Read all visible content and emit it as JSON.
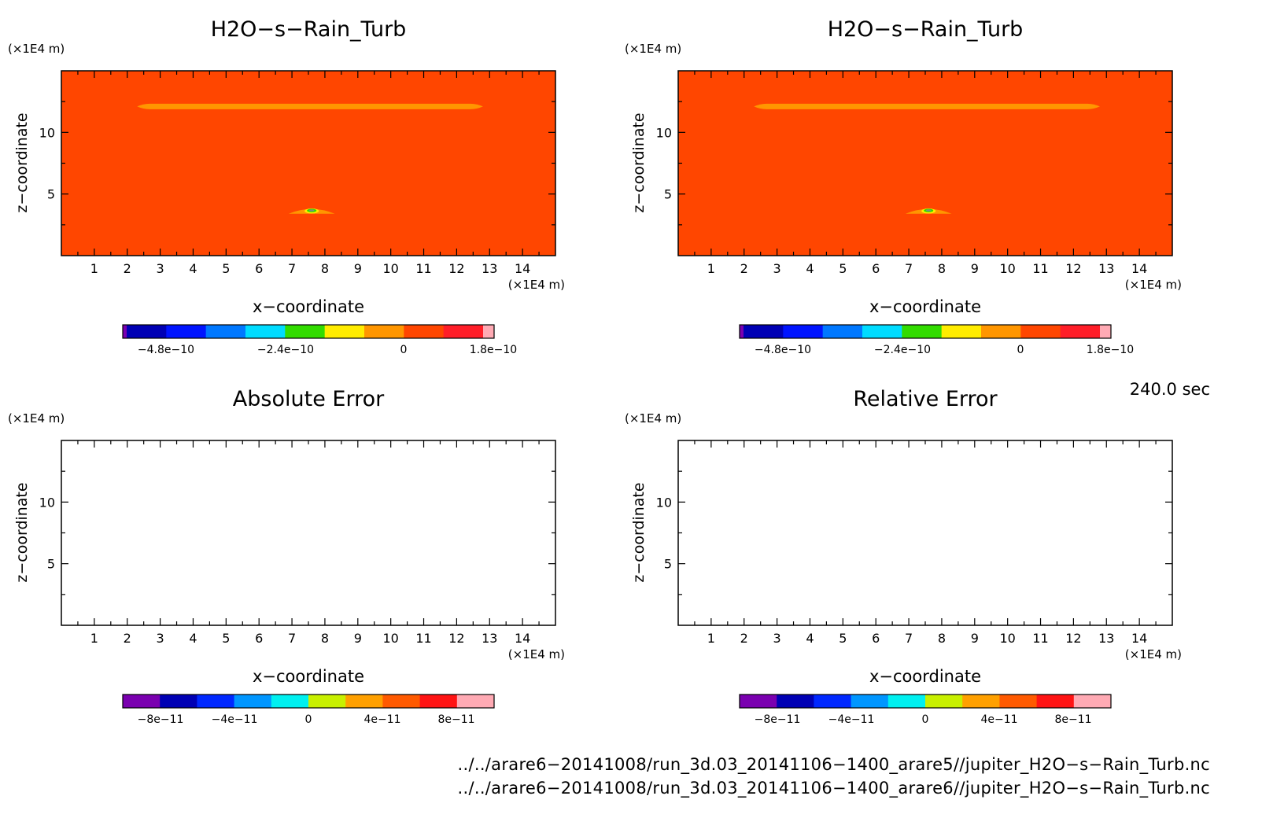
{
  "panels": [
    {
      "id": "full-left",
      "title": "H2O−s−Rain_Turb",
      "y_unit": "(×1E4 m)",
      "x_unit": "(×1E4 m)",
      "ylabel": "z−coordinate",
      "xlabel": "x−coordinate",
      "filled": true,
      "colorbar_id": "wide"
    },
    {
      "id": "full-right",
      "title": "H2O−s−Rain_Turb",
      "y_unit": "(×1E4 m)",
      "x_unit": "(×1E4 m)",
      "ylabel": "z−coordinate",
      "xlabel": "x−coordinate",
      "filled": true,
      "colorbar_id": "wide"
    },
    {
      "id": "abs-error",
      "title": "Absolute Error",
      "y_unit": "(×1E4 m)",
      "x_unit": "(×1E4 m)",
      "ylabel": "z−coordinate",
      "xlabel": "x−coordinate",
      "filled": false,
      "colorbar_id": "small"
    },
    {
      "id": "rel-error",
      "title": "Relative Error",
      "y_unit": "(×1E4 m)",
      "x_unit": "(×1E4 m)",
      "ylabel": "z−coordinate",
      "xlabel": "x−coordinate",
      "filled": false,
      "colorbar_id": "small"
    }
  ],
  "colorbars": {
    "wide": {
      "colors": [
        "#7a00b0",
        "#0000b4",
        "#0014ff",
        "#0078ff",
        "#00dcff",
        "#32dc00",
        "#ffec00",
        "#ff9600",
        "#ff4600",
        "#ff1e28",
        "#ffaab4"
      ],
      "labels": [
        "−4.8e−10",
        "−2.4e−10",
        "0",
        "1.8e−10"
      ]
    },
    "small": {
      "colors": [
        "#7a00b0",
        "#0000b4",
        "#0028ff",
        "#0096ff",
        "#00f0f0",
        "#c8f000",
        "#ffa000",
        "#ff5a00",
        "#ff1414",
        "#ffaab4"
      ],
      "labels": [
        "−8e−11",
        "−4e−11",
        "0",
        "4e−11",
        "8e−11"
      ]
    }
  },
  "chart_data": [
    {
      "type": "heatmap",
      "title": "H2O−s−Rain_Turb",
      "xlabel": "x−coordinate",
      "ylabel": "z−coordinate",
      "x_unit": "(×1E4 m)",
      "y_unit": "(×1E4 m)",
      "xlim": [
        0,
        15
      ],
      "ylim": [
        0,
        15
      ],
      "x_ticks": [
        1,
        2,
        3,
        4,
        5,
        6,
        7,
        8,
        9,
        10,
        11,
        12,
        13,
        14
      ],
      "y_ticks": [
        5,
        10
      ],
      "background_value_color": "#ff4600",
      "features": [
        {
          "kind": "layer",
          "x_range": [
            2.3,
            12.8
          ],
          "z": 12.1,
          "color": "#ff9600"
        },
        {
          "kind": "blob",
          "x_center": 7.6,
          "x_range": [
            6.9,
            8.3
          ],
          "z": 3.4,
          "color": "#ff9600"
        }
      ],
      "colorbar_ticks": [
        "−4.8e−10",
        "−2.4e−10",
        "0",
        "1.8e−10"
      ]
    },
    {
      "type": "heatmap",
      "title": "H2O−s−Rain_Turb",
      "xlabel": "x−coordinate",
      "ylabel": "z−coordinate",
      "x_unit": "(×1E4 m)",
      "y_unit": "(×1E4 m)",
      "xlim": [
        0,
        15
      ],
      "ylim": [
        0,
        15
      ],
      "x_ticks": [
        1,
        2,
        3,
        4,
        5,
        6,
        7,
        8,
        9,
        10,
        11,
        12,
        13,
        14
      ],
      "y_ticks": [
        5,
        10
      ],
      "background_value_color": "#ff4600",
      "features": [
        {
          "kind": "layer",
          "x_range": [
            2.3,
            12.8
          ],
          "z": 12.1,
          "color": "#ff9600"
        },
        {
          "kind": "blob",
          "x_center": 7.6,
          "x_range": [
            6.9,
            8.3
          ],
          "z": 3.4,
          "color": "#ff9600"
        }
      ],
      "colorbar_ticks": [
        "−4.8e−10",
        "−2.4e−10",
        "0",
        "1.8e−10"
      ]
    },
    {
      "type": "heatmap",
      "title": "Absolute Error",
      "xlabel": "x−coordinate",
      "ylabel": "z−coordinate",
      "x_unit": "(×1E4 m)",
      "y_unit": "(×1E4 m)",
      "xlim": [
        0,
        15
      ],
      "ylim": [
        0,
        15
      ],
      "x_ticks": [
        1,
        2,
        3,
        4,
        5,
        6,
        7,
        8,
        9,
        10,
        11,
        12,
        13,
        14
      ],
      "y_ticks": [
        5,
        10
      ],
      "features": [],
      "colorbar_ticks": [
        "−8e−11",
        "−4e−11",
        "0",
        "4e−11",
        "8e−11"
      ]
    },
    {
      "type": "heatmap",
      "title": "Relative Error",
      "xlabel": "x−coordinate",
      "ylabel": "z−coordinate",
      "x_unit": "(×1E4 m)",
      "y_unit": "(×1E4 m)",
      "xlim": [
        0,
        15
      ],
      "ylim": [
        0,
        15
      ],
      "x_ticks": [
        1,
        2,
        3,
        4,
        5,
        6,
        7,
        8,
        9,
        10,
        11,
        12,
        13,
        14
      ],
      "y_ticks": [
        5,
        10
      ],
      "features": [],
      "colorbar_ticks": [
        "−8e−11",
        "−4e−11",
        "0",
        "4e−11",
        "8e−11"
      ]
    }
  ],
  "time_label": "240.0 sec",
  "footer": {
    "line1": "../../arare6−20141008/run_3d.03_20141106−1400_arare5//jupiter_H2O−s−Rain_Turb.nc",
    "line2": "../../arare6−20141008/run_3d.03_20141106−1400_arare6//jupiter_H2O−s−Rain_Turb.nc"
  }
}
